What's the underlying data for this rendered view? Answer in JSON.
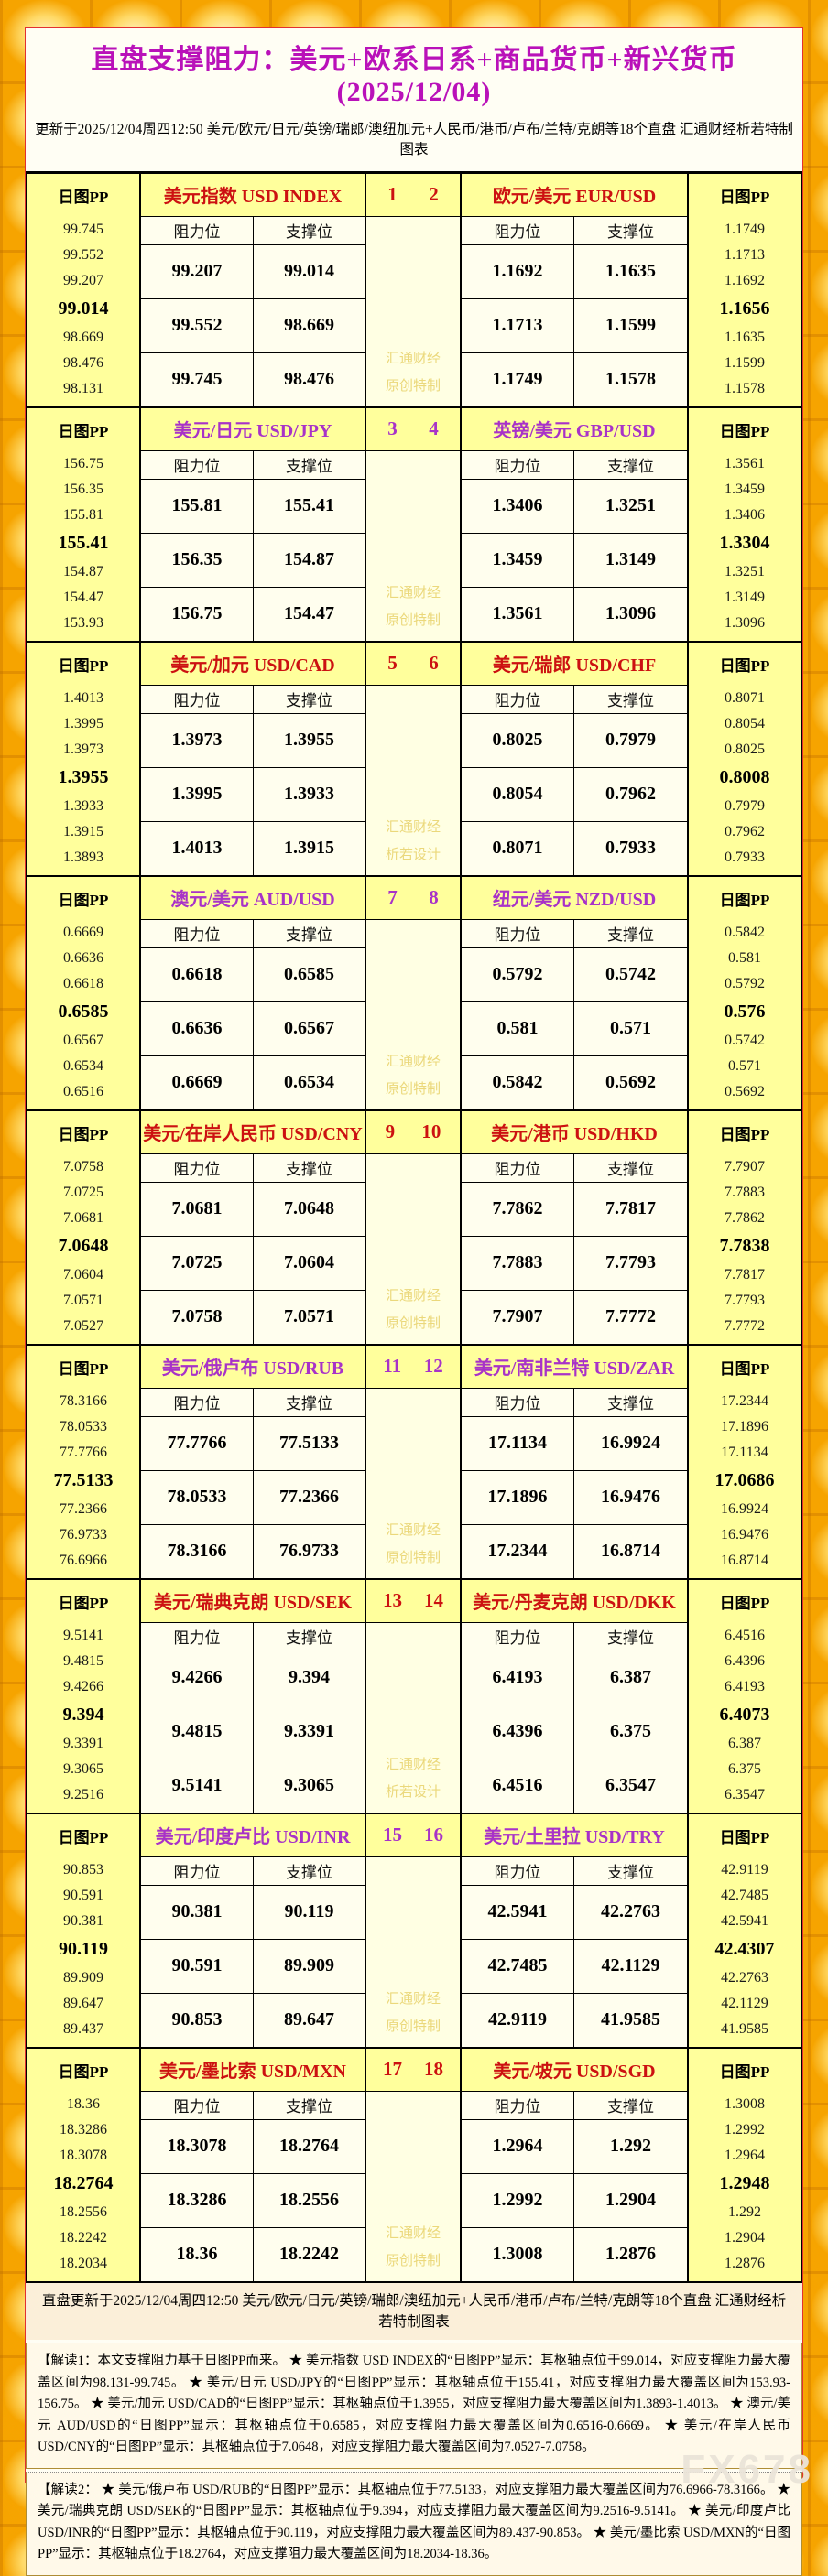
{
  "title": "直盘支撑阻力：美元+欧系日系+商品货币+新兴货币(2025/12/04)",
  "subtitle": "更新于2025/12/04周四12:50  美元/欧元/日元/英镑/瑞郎/澳纽加元+人民币/港币/卢布/兰特/克朗等18个直盘  汇通财经析若特制图表",
  "labels": {
    "pp": "日图PP",
    "resistance": "阻力位",
    "support": "支撑位"
  },
  "colors": {
    "accent_red": "#CC1111",
    "accent_purple": "#A832C8",
    "title_color": "#B911B9",
    "gold_background": "#F6A400",
    "header_cell": "#FFFF9C",
    "value_cell": "#FFFEEE"
  },
  "blocks": [
    {
      "accent": "red",
      "left_num": "1",
      "right_num": "2",
      "watermark": [
        "汇通财经",
        "原创特制"
      ],
      "pairs": [
        {
          "name": "美元指数 USD INDEX",
          "pp": [
            "99.745",
            "99.552",
            "99.207",
            "99.014",
            "98.669",
            "98.476",
            "98.131"
          ],
          "rows": [
            [
              "99.207",
              "99.014"
            ],
            [
              "99.552",
              "98.669"
            ],
            [
              "99.745",
              "98.476"
            ]
          ]
        },
        {
          "name": "欧元/美元 EUR/USD",
          "pp": [
            "1.1749",
            "1.1713",
            "1.1692",
            "1.1656",
            "1.1635",
            "1.1599",
            "1.1578"
          ],
          "rows": [
            [
              "1.1692",
              "1.1635"
            ],
            [
              "1.1713",
              "1.1599"
            ],
            [
              "1.1749",
              "1.1578"
            ]
          ]
        }
      ]
    },
    {
      "accent": "purple",
      "left_num": "3",
      "right_num": "4",
      "watermark": [
        "汇通财经",
        "原创特制"
      ],
      "pairs": [
        {
          "name": "美元/日元 USD/JPY",
          "pp": [
            "156.75",
            "156.35",
            "155.81",
            "155.41",
            "154.87",
            "154.47",
            "153.93"
          ],
          "rows": [
            [
              "155.81",
              "155.41"
            ],
            [
              "156.35",
              "154.87"
            ],
            [
              "156.75",
              "154.47"
            ]
          ]
        },
        {
          "name": "英镑/美元 GBP/USD",
          "pp": [
            "1.3561",
            "1.3459",
            "1.3406",
            "1.3304",
            "1.3251",
            "1.3149",
            "1.3096"
          ],
          "rows": [
            [
              "1.3406",
              "1.3251"
            ],
            [
              "1.3459",
              "1.3149"
            ],
            [
              "1.3561",
              "1.3096"
            ]
          ]
        }
      ]
    },
    {
      "accent": "red",
      "left_num": "5",
      "right_num": "6",
      "watermark": [
        "汇通财经",
        "析若设计"
      ],
      "pairs": [
        {
          "name": "美元/加元 USD/CAD",
          "pp": [
            "1.4013",
            "1.3995",
            "1.3973",
            "1.3955",
            "1.3933",
            "1.3915",
            "1.3893"
          ],
          "rows": [
            [
              "1.3973",
              "1.3955"
            ],
            [
              "1.3995",
              "1.3933"
            ],
            [
              "1.4013",
              "1.3915"
            ]
          ]
        },
        {
          "name": "美元/瑞郎 USD/CHF",
          "pp": [
            "0.8071",
            "0.8054",
            "0.8025",
            "0.8008",
            "0.7979",
            "0.7962",
            "0.7933"
          ],
          "rows": [
            [
              "0.8025",
              "0.7979"
            ],
            [
              "0.8054",
              "0.7962"
            ],
            [
              "0.8071",
              "0.7933"
            ]
          ]
        }
      ]
    },
    {
      "accent": "purple",
      "left_num": "7",
      "right_num": "8",
      "watermark": [
        "汇通财经",
        "原创特制"
      ],
      "pairs": [
        {
          "name": "澳元/美元 AUD/USD",
          "pp": [
            "0.6669",
            "0.6636",
            "0.6618",
            "0.6585",
            "0.6567",
            "0.6534",
            "0.6516"
          ],
          "rows": [
            [
              "0.6618",
              "0.6585"
            ],
            [
              "0.6636",
              "0.6567"
            ],
            [
              "0.6669",
              "0.6534"
            ]
          ]
        },
        {
          "name": "纽元/美元 NZD/USD",
          "pp": [
            "0.5842",
            "0.581",
            "0.5792",
            "0.576",
            "0.5742",
            "0.571",
            "0.5692"
          ],
          "rows": [
            [
              "0.5792",
              "0.5742"
            ],
            [
              "0.581",
              "0.571"
            ],
            [
              "0.5842",
              "0.5692"
            ]
          ]
        }
      ]
    },
    {
      "accent": "red",
      "left_num": "9",
      "right_num": "10",
      "watermark": [
        "汇通财经",
        "原创特制"
      ],
      "pairs": [
        {
          "name": "美元/在岸人民币 USD/CNY",
          "pp": [
            "7.0758",
            "7.0725",
            "7.0681",
            "7.0648",
            "7.0604",
            "7.0571",
            "7.0527"
          ],
          "rows": [
            [
              "7.0681",
              "7.0648"
            ],
            [
              "7.0725",
              "7.0604"
            ],
            [
              "7.0758",
              "7.0571"
            ]
          ]
        },
        {
          "name": "美元/港币 USD/HKD",
          "pp": [
            "7.7907",
            "7.7883",
            "7.7862",
            "7.7838",
            "7.7817",
            "7.7793",
            "7.7772"
          ],
          "rows": [
            [
              "7.7862",
              "7.7817"
            ],
            [
              "7.7883",
              "7.7793"
            ],
            [
              "7.7907",
              "7.7772"
            ]
          ]
        }
      ]
    },
    {
      "accent": "purple",
      "left_num": "11",
      "right_num": "12",
      "watermark": [
        "汇通财经",
        "原创特制"
      ],
      "pairs": [
        {
          "name": "美元/俄卢布 USD/RUB",
          "pp": [
            "78.3166",
            "78.0533",
            "77.7766",
            "77.5133",
            "77.2366",
            "76.9733",
            "76.6966"
          ],
          "rows": [
            [
              "77.7766",
              "77.5133"
            ],
            [
              "78.0533",
              "77.2366"
            ],
            [
              "78.3166",
              "76.9733"
            ]
          ]
        },
        {
          "name": "美元/南非兰特 USD/ZAR",
          "pp": [
            "17.2344",
            "17.1896",
            "17.1134",
            "17.0686",
            "16.9924",
            "16.9476",
            "16.8714"
          ],
          "rows": [
            [
              "17.1134",
              "16.9924"
            ],
            [
              "17.1896",
              "16.9476"
            ],
            [
              "17.2344",
              "16.8714"
            ]
          ]
        }
      ]
    },
    {
      "accent": "red",
      "left_num": "13",
      "right_num": "14",
      "watermark": [
        "汇通财经",
        "析若设计"
      ],
      "pairs": [
        {
          "name": "美元/瑞典克朗 USD/SEK",
          "pp": [
            "9.5141",
            "9.4815",
            "9.4266",
            "9.394",
            "9.3391",
            "9.3065",
            "9.2516"
          ],
          "rows": [
            [
              "9.4266",
              "9.394"
            ],
            [
              "9.4815",
              "9.3391"
            ],
            [
              "9.5141",
              "9.3065"
            ]
          ]
        },
        {
          "name": "美元/丹麦克朗 USD/DKK",
          "pp": [
            "6.4516",
            "6.4396",
            "6.4193",
            "6.4073",
            "6.387",
            "6.375",
            "6.3547"
          ],
          "rows": [
            [
              "6.4193",
              "6.387"
            ],
            [
              "6.4396",
              "6.375"
            ],
            [
              "6.4516",
              "6.3547"
            ]
          ]
        }
      ]
    },
    {
      "accent": "purple",
      "left_num": "15",
      "right_num": "16",
      "watermark": [
        "汇通财经",
        "原创特制"
      ],
      "pairs": [
        {
          "name": "美元/印度卢比 USD/INR",
          "pp": [
            "90.853",
            "90.591",
            "90.381",
            "90.119",
            "89.909",
            "89.647",
            "89.437"
          ],
          "rows": [
            [
              "90.381",
              "90.119"
            ],
            [
              "90.591",
              "89.909"
            ],
            [
              "90.853",
              "89.647"
            ]
          ]
        },
        {
          "name": "美元/土里拉 USD/TRY",
          "pp": [
            "42.9119",
            "42.7485",
            "42.5941",
            "42.4307",
            "42.2763",
            "42.1129",
            "41.9585"
          ],
          "rows": [
            [
              "42.5941",
              "42.2763"
            ],
            [
              "42.7485",
              "42.1129"
            ],
            [
              "42.9119",
              "41.9585"
            ]
          ]
        }
      ]
    },
    {
      "accent": "red",
      "left_num": "17",
      "right_num": "18",
      "watermark": [
        "汇通财经",
        "原创特制"
      ],
      "pairs": [
        {
          "name": "美元/墨比索 USD/MXN",
          "pp": [
            "18.36",
            "18.3286",
            "18.3078",
            "18.2764",
            "18.2556",
            "18.2242",
            "18.2034"
          ],
          "rows": [
            [
              "18.3078",
              "18.2764"
            ],
            [
              "18.3286",
              "18.2556"
            ],
            [
              "18.36",
              "18.2242"
            ]
          ]
        },
        {
          "name": "美元/坡元 USD/SGD",
          "pp": [
            "1.3008",
            "1.2992",
            "1.2964",
            "1.2948",
            "1.292",
            "1.2904",
            "1.2876"
          ],
          "rows": [
            [
              "1.2964",
              "1.292"
            ],
            [
              "1.2992",
              "1.2904"
            ],
            [
              "1.3008",
              "1.2876"
            ]
          ]
        }
      ]
    }
  ],
  "footer_line": "直盘更新于2025/12/04周四12:50  美元/欧元/日元/英镑/瑞郎/澳纽加元+人民币/港币/卢布/兰特/克朗等18个直盘  汇通财经析若特制图表",
  "notes": [
    "【解读1：本文支撑阻力基于日图PP而来。 ★ 美元指数 USD INDEX的“日图PP”显示：其枢轴点位于99.014，对应支撑阻力最大覆盖区间为98.131-99.745。 ★ 美元/日元 USD/JPY的“日图PP”显示：其枢轴点位于155.41，对应支撑阻力最大覆盖区间为153.93-156.75。 ★ 美元/加元 USD/CAD的“日图PP”显示：其枢轴点位于1.3955，对应支撑阻力最大覆盖区间为1.3893-1.4013。 ★ 澳元/美元 AUD/USD的“日图PP”显示：其枢轴点位于0.6585，对应支撑阻力最大覆盖区间为0.6516-0.6669。 ★ 美元/在岸人民币 USD/CNY的“日图PP”显示：其枢轴点位于7.0648，对应支撑阻力最大覆盖区间为7.0527-7.0758。",
    "【解读2： ★ 美元/俄卢布 USD/RUB的“日图PP”显示：其枢轴点位于77.5133，对应支撑阻力最大覆盖区间为76.6966-78.3166。 ★ 美元/瑞典克朗 USD/SEK的“日图PP”显示：其枢轴点位于9.394，对应支撑阻力最大覆盖区间为9.2516-9.5141。 ★ 美元/印度卢比 USD/INR的“日图PP”显示：其枢轴点位于90.119，对应支撑阻力最大覆盖区间为89.437-90.853。 ★ 美元/墨比索 USD/MXN的“日图PP”显示：其枢轴点位于18.2764，对应支撑阻力最大覆盖区间为18.2034-18.36。"
  ],
  "brand_watermark": "FX678"
}
